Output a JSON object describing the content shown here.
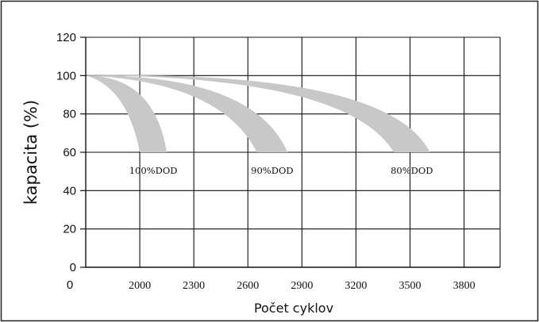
{
  "chart_data": {
    "type": "area",
    "title": "",
    "xlabel": "Počet cyklov",
    "ylabel": "kapacita (%)",
    "x_origin_label": "0",
    "x_ticks": [
      2000,
      2300,
      2600,
      2900,
      3200,
      3500,
      3800
    ],
    "y_ticks": [
      0,
      20,
      40,
      60,
      80,
      100,
      120
    ],
    "ylim": [
      0,
      120
    ],
    "xlim": [
      1700,
      4000
    ],
    "grid": true,
    "legend": "none",
    "band_color": "#c8c8c8",
    "series": [
      {
        "label": "100%DOD",
        "start": [
          1700,
          100
        ],
        "inner_end": [
          2000,
          60
        ],
        "outer_end": [
          2150,
          60
        ],
        "inner_ctrl": [
          1930,
          94
        ],
        "outer_ctrl": [
          2080,
          100
        ]
      },
      {
        "label": "90%DOD",
        "start": [
          1700,
          100
        ],
        "inner_end": [
          2650,
          60
        ],
        "outer_end": [
          2820,
          60
        ],
        "inner_ctrl": [
          2450,
          97
        ],
        "outer_ctrl": [
          2630,
          101
        ]
      },
      {
        "label": "80%DOD",
        "start": [
          1700,
          100
        ],
        "inner_end": [
          3410,
          60
        ],
        "outer_end": [
          3610,
          60
        ],
        "inner_ctrl": [
          3150,
          100
        ],
        "outer_ctrl": [
          3380,
          103
        ]
      }
    ]
  }
}
